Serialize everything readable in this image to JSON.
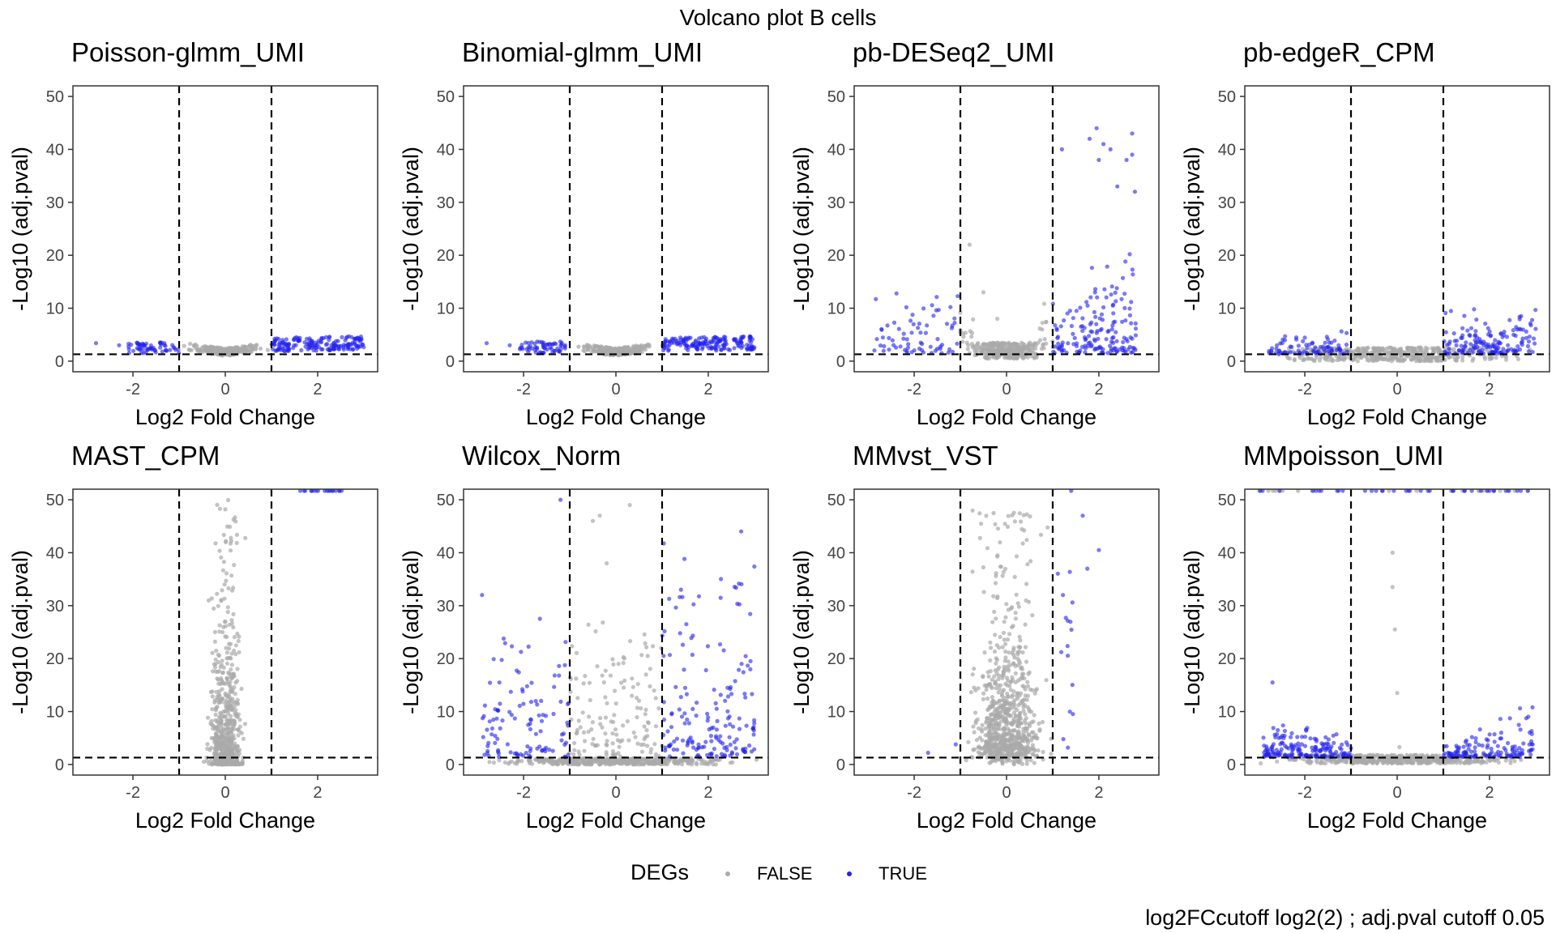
{
  "title": "Volcano plot B cells",
  "caption": "log2FCcutoff log2(2) ; adj.pval cutoff 0.05",
  "legend": {
    "title": "DEGs",
    "items": [
      {
        "label": "FALSE",
        "color": "#aaaaaa"
      },
      {
        "label": "TRUE",
        "color": "#2222ee"
      }
    ]
  },
  "colors": {
    "false": "#aaaaaa",
    "true": "#2222ee",
    "cutoff_line": "#000000"
  },
  "chart_data": [
    {
      "type": "scatter",
      "title": "Poisson-glmm_UMI",
      "xlabel": "Log2 Fold Change",
      "ylabel": "-Log10 (adj.pval)",
      "xlim": [
        -3.3,
        3.3
      ],
      "ylim": [
        -2,
        52
      ],
      "xticks": [
        -2,
        0,
        2
      ],
      "yticks": [
        0,
        10,
        20,
        30,
        40,
        50
      ],
      "vlines": [
        -1,
        1
      ],
      "hline": 1.3,
      "pattern": "flat_glmm"
    },
    {
      "type": "scatter",
      "title": "Binomial-glmm_UMI",
      "xlabel": "Log2 Fold Change",
      "ylabel": "-Log10 (adj.pval)",
      "xlim": [
        -3.3,
        3.3
      ],
      "ylim": [
        -2,
        52
      ],
      "xticks": [
        -2,
        0,
        2
      ],
      "yticks": [
        0,
        10,
        20,
        30,
        40,
        50
      ],
      "vlines": [
        -1,
        1
      ],
      "hline": 1.3,
      "pattern": "flat_glmm"
    },
    {
      "type": "scatter",
      "title": "pb-DESeq2_UMI",
      "xlabel": "Log2 Fold Change",
      "ylabel": "-Log10 (adj.pval)",
      "xlim": [
        -3.3,
        3.3
      ],
      "ylim": [
        -2,
        52
      ],
      "xticks": [
        -2,
        0,
        2
      ],
      "yticks": [
        0,
        10,
        20,
        30,
        40,
        50
      ],
      "vlines": [
        -1,
        1
      ],
      "hline": 1.3,
      "pattern": "deseq"
    },
    {
      "type": "scatter",
      "title": "pb-edgeR_CPM",
      "xlabel": "Log2 Fold Change",
      "ylabel": "-Log10 (adj.pval)",
      "xlim": [
        -3.3,
        3.3
      ],
      "ylim": [
        -2,
        52
      ],
      "xticks": [
        -2,
        0,
        2
      ],
      "yticks": [
        0,
        10,
        20,
        30,
        40,
        50
      ],
      "vlines": [
        -1,
        1
      ],
      "hline": 1.3,
      "pattern": "edger"
    },
    {
      "type": "scatter",
      "title": "MAST_CPM",
      "xlabel": "Log2 Fold Change",
      "ylabel": "-Log10 (adj.pval)",
      "xlim": [
        -3.3,
        3.3
      ],
      "ylim": [
        -2,
        52
      ],
      "xticks": [
        -2,
        0,
        2
      ],
      "yticks": [
        0,
        10,
        20,
        30,
        40,
        50
      ],
      "vlines": [
        -1,
        1
      ],
      "hline": 1.3,
      "pattern": "mast"
    },
    {
      "type": "scatter",
      "title": "Wilcox_Norm",
      "xlabel": "Log2 Fold Change",
      "ylabel": "-Log10 (adj.pval)",
      "xlim": [
        -3.3,
        3.3
      ],
      "ylim": [
        -2,
        52
      ],
      "xticks": [
        -2,
        0,
        2
      ],
      "yticks": [
        0,
        10,
        20,
        30,
        40,
        50
      ],
      "vlines": [
        -1,
        1
      ],
      "hline": 1.3,
      "pattern": "wilcox"
    },
    {
      "type": "scatter",
      "title": "MMvst_VST",
      "xlabel": "Log2 Fold Change",
      "ylabel": "-Log10 (adj.pval)",
      "xlim": [
        -3.3,
        3.3
      ],
      "ylim": [
        -2,
        52
      ],
      "xticks": [
        -2,
        0,
        2
      ],
      "yticks": [
        0,
        10,
        20,
        30,
        40,
        50
      ],
      "vlines": [
        -1,
        1
      ],
      "hline": 1.3,
      "pattern": "mmvst"
    },
    {
      "type": "scatter",
      "title": "MMpoisson_UMI",
      "xlabel": "Log2 Fold Change",
      "ylabel": "-Log10 (adj.pval)",
      "xlim": [
        -3.3,
        3.3
      ],
      "ylim": [
        -2,
        52
      ],
      "xticks": [
        -2,
        0,
        2
      ],
      "yticks": [
        0,
        10,
        20,
        30,
        40,
        50
      ],
      "vlines": [
        -1,
        1
      ],
      "hline": 1.3,
      "pattern": "mmpoisson"
    }
  ]
}
